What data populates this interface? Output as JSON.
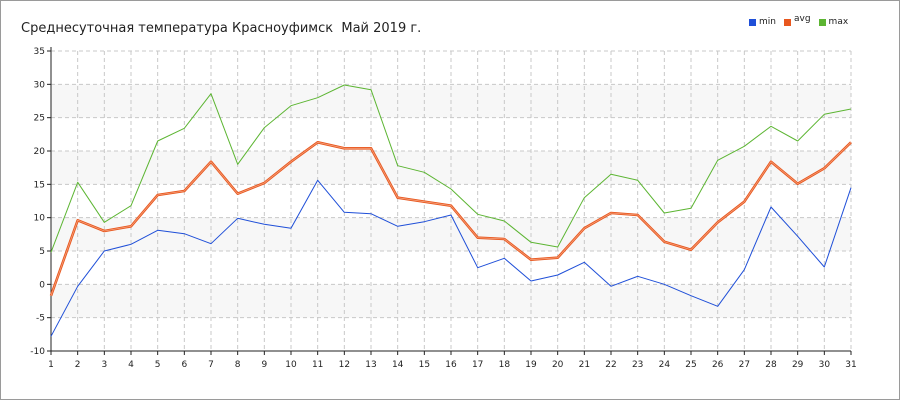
{
  "chart_data": {
    "type": "line",
    "title": "Среднесуточная температура Красноуфимск  Май 2019 г.",
    "xlabel": "",
    "ylabel": "",
    "categories": [
      "1",
      "2",
      "3",
      "4",
      "5",
      "6",
      "7",
      "8",
      "9",
      "10",
      "11",
      "12",
      "13",
      "14",
      "15",
      "16",
      "17",
      "18",
      "19",
      "20",
      "21",
      "22",
      "23",
      "24",
      "25",
      "26",
      "27",
      "28",
      "29",
      "30",
      "31"
    ],
    "ylim": [
      -10,
      35
    ],
    "yticks": [
      "-10",
      "-5",
      "0",
      "5",
      "10",
      "15",
      "20",
      "25",
      "30",
      "35"
    ],
    "grid": true,
    "legend_position": "top-right",
    "series": [
      {
        "name": "min",
        "color": "#1f4fd8",
        "values": [
          -7.8,
          -0.3,
          5.0,
          6.0,
          8.1,
          7.6,
          6.1,
          9.9,
          9.0,
          8.4,
          15.6,
          10.8,
          10.6,
          8.7,
          9.4,
          10.4,
          2.5,
          3.9,
          0.5,
          1.4,
          3.3,
          -0.3,
          1.2,
          0.0,
          -1.7,
          -3.3,
          2.2,
          11.6,
          7.2,
          2.6,
          14.5
        ]
      },
      {
        "name": "avg",
        "color": "#e8571e",
        "values": [
          -1.7,
          9.6,
          8.0,
          8.7,
          13.4,
          14.0,
          18.4,
          13.6,
          15.2,
          18.4,
          21.3,
          20.4,
          20.4,
          13.0,
          12.4,
          11.8,
          7.0,
          6.8,
          3.7,
          4.0,
          8.4,
          10.7,
          10.4,
          6.4,
          5.2,
          9.3,
          12.4,
          18.4,
          15.1,
          17.4,
          21.3
        ]
      },
      {
        "name": "max",
        "color": "#5cb532",
        "values": [
          4.8,
          15.3,
          9.3,
          11.8,
          21.5,
          23.4,
          28.6,
          18.0,
          23.5,
          26.8,
          28.0,
          29.9,
          29.2,
          17.8,
          16.8,
          14.3,
          10.5,
          9.5,
          6.3,
          5.6,
          13.0,
          16.5,
          15.6,
          10.7,
          11.4,
          18.6,
          20.7,
          23.7,
          21.5,
          25.5,
          26.3
        ]
      }
    ]
  }
}
